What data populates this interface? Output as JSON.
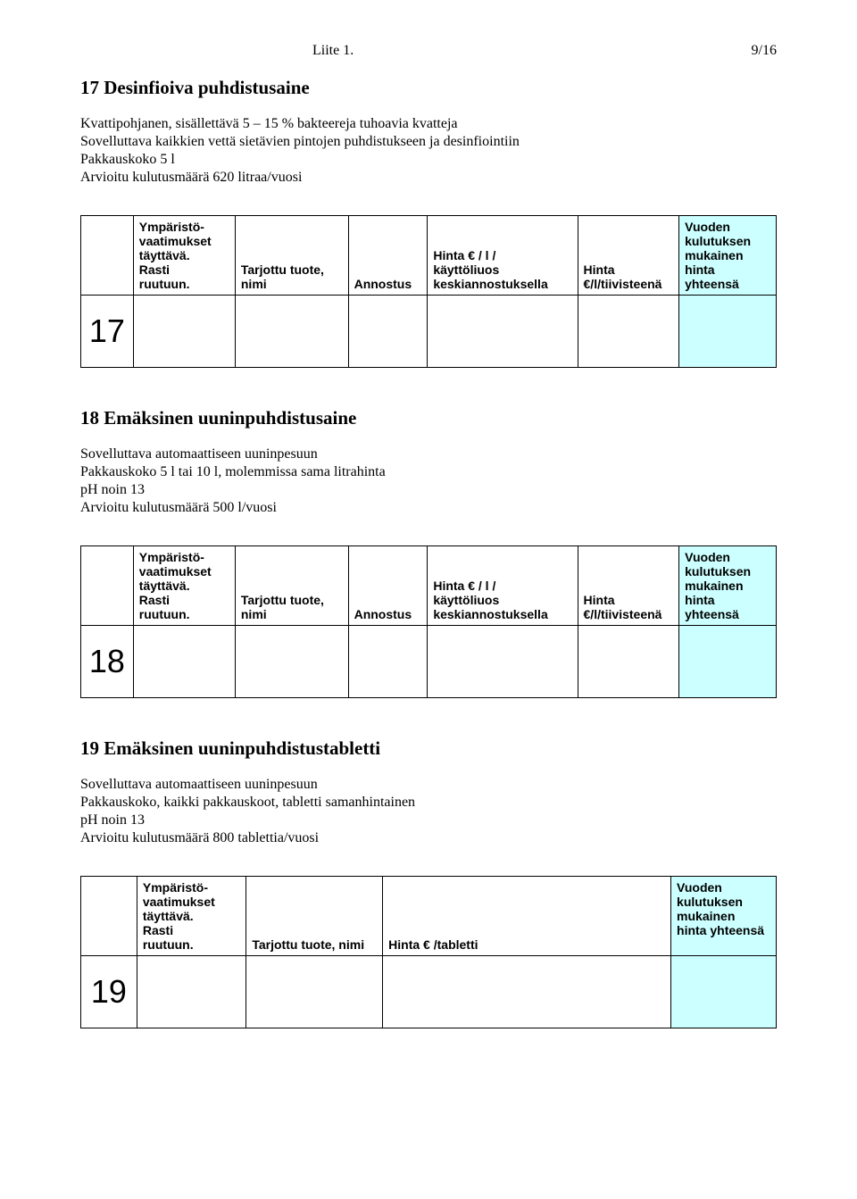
{
  "header": {
    "center": "Liite 1.",
    "right": "9/16"
  },
  "section17": {
    "title": "17 Desinfioiva puhdistusaine",
    "body": "Kvattipohjanen, sisällettävä 5 – 15 % bakteereja tuhoavia kvatteja\nSovelluttava kaikkien vettä sietävien pintojen puhdistukseen ja desinfiointiin\nPakkauskoko  5 l\nArvioitu kulutusmäärä 620 litraa/vuosi",
    "num": "17"
  },
  "section18": {
    "title": "18 Emäksinen uuninpuhdistusaine",
    "body": "Sovelluttava automaattiseen uuninpesuun\nPakkauskoko 5 l tai 10 l, molemmissa sama litrahinta\npH noin 13\nArvioitu kulutusmäärä 500 l/vuosi",
    "num": "18"
  },
  "section19": {
    "title": "19 Emäksinen uuninpuhdistustabletti",
    "body": "Sovelluttava automaattiseen uuninpesuun\nPakkauskoko, kaikki pakkauskoot, tabletti samanhintainen\npH noin 13\nArvioitu kulutusmäärä 800 tablettia/vuosi",
    "num": "19"
  },
  "tableA": {
    "headers": {
      "env": "Ympäristö-\nvaatimukset\ntäyttävä.\nRasti\nruutuun.",
      "product": "Tarjottu tuote, nimi",
      "dose": "Annostus",
      "priceper": "Hinta € / l /\nkäyttöliuos\nkeskiannostuksella",
      "concentrate": "Hinta\n€/l/tiivisteenä",
      "total": "Vuoden\nkulutuksen\nmukainen\nhinta yhteensä"
    }
  },
  "tableB": {
    "headers": {
      "env": "Ympäristö-\nvaatimukset\ntäyttävä.\nRasti\nruutuun.",
      "product": "Tarjottu tuote, nimi",
      "tablet": "Hinta € /tabletti",
      "total": "Vuoden\nkulutuksen\nmukainen\nhinta yhteensä"
    }
  },
  "colors": {
    "highlight": "#ccffff"
  }
}
